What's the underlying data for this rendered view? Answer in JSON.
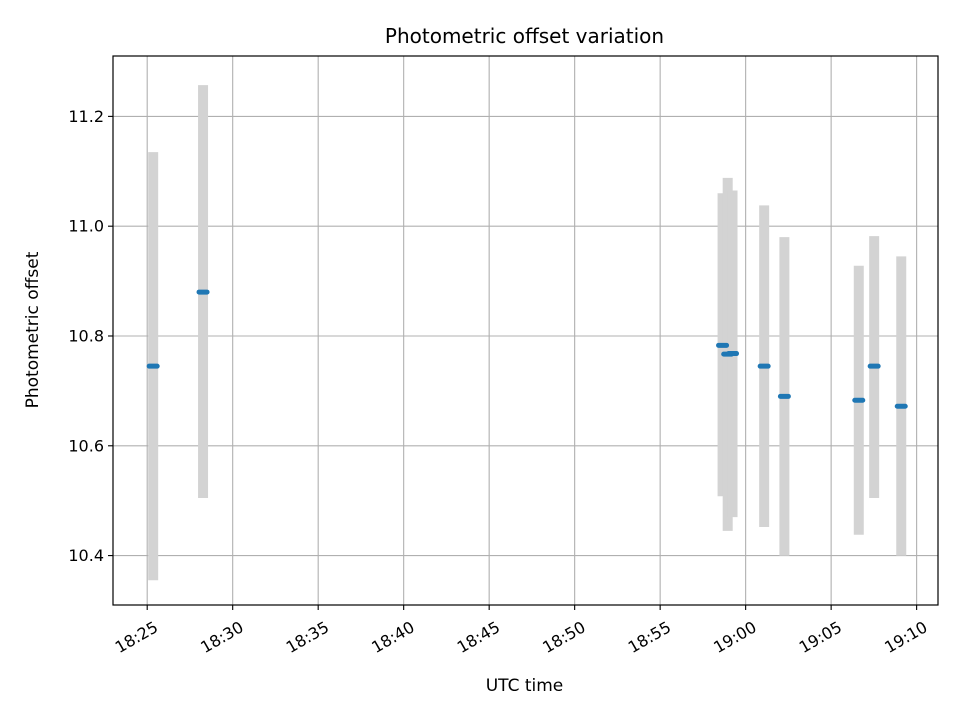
{
  "chart_data": {
    "type": "scatter",
    "title": "Photometric offset variation",
    "xlabel": "UTC time",
    "ylabel": "Photometric offset",
    "xlim": [
      "18:23:00",
      "19:11:15"
    ],
    "ylim": [
      10.31,
      11.31
    ],
    "x_ticks": [
      "18:25",
      "18:30",
      "18:35",
      "18:40",
      "18:45",
      "18:50",
      "18:55",
      "19:00",
      "19:05",
      "19:10"
    ],
    "y_ticks": [
      10.4,
      10.6,
      10.8,
      11.0,
      11.2
    ],
    "y_tick_labels": [
      "10.4",
      "10.6",
      "10.8",
      "11.0",
      "11.2"
    ],
    "grid": true,
    "colors": {
      "point": "#1f77b4",
      "errorbar": "#d3d3d3",
      "grid": "#b0b0b0"
    },
    "series": [
      {
        "points": [
          {
            "t": "18:25:21",
            "y": 10.745,
            "ylo": 10.355,
            "yhi": 11.135
          },
          {
            "t": "18:28:16",
            "y": 10.88,
            "ylo": 10.505,
            "yhi": 11.257
          },
          {
            "t": "18:58:39",
            "y": 10.783,
            "ylo": 10.508,
            "yhi": 11.06
          },
          {
            "t": "18:58:57",
            "y": 10.767,
            "ylo": 10.445,
            "yhi": 11.088
          },
          {
            "t": "18:59:14",
            "y": 10.768,
            "ylo": 10.47,
            "yhi": 11.065
          },
          {
            "t": "19:01:05",
            "y": 10.745,
            "ylo": 10.452,
            "yhi": 11.038
          },
          {
            "t": "19:02:16",
            "y": 10.69,
            "ylo": 10.4,
            "yhi": 10.98
          },
          {
            "t": "19:06:37",
            "y": 10.683,
            "ylo": 10.438,
            "yhi": 10.928
          },
          {
            "t": "19:07:31",
            "y": 10.745,
            "ylo": 10.505,
            "yhi": 10.982
          },
          {
            "t": "19:09:06",
            "y": 10.672,
            "ylo": 10.4,
            "yhi": 10.945
          }
        ]
      }
    ]
  }
}
